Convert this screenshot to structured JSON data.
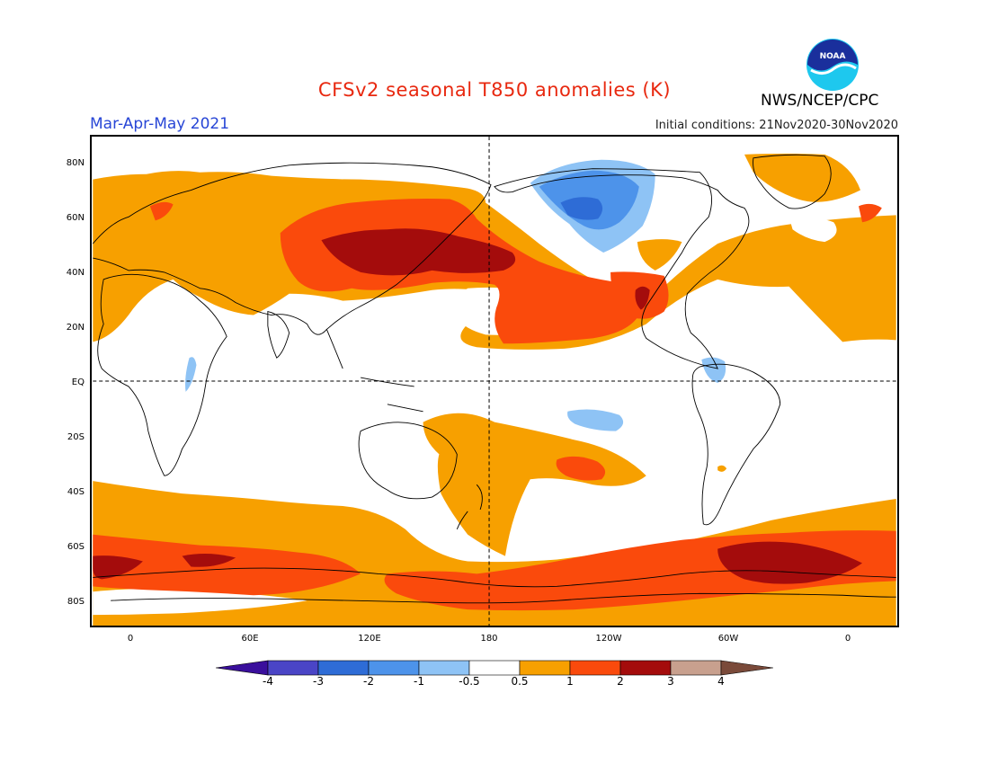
{
  "header": {
    "title": "CFSv2 seasonal T850 anomalies (K)",
    "season": "Mar-Apr-May 2021",
    "initial_conditions": "Initial conditions: 21Nov2020-30Nov2020",
    "agency": "NWS/NCEP/CPC",
    "logo_text": "NOAA"
  },
  "axes": {
    "lat_labels": [
      "80N",
      "60N",
      "40N",
      "20N",
      "EQ",
      "20S",
      "40S",
      "60S",
      "80S"
    ],
    "lon_labels": [
      "0",
      "60E",
      "120E",
      "180",
      "120W",
      "60W",
      "0"
    ]
  },
  "colorbar": {
    "labels": [
      "-4",
      "-3",
      "-2",
      "-1",
      "-0.5",
      "0.5",
      "1",
      "2",
      "3",
      "4"
    ],
    "colors": {
      "lt_-4": "#3a0f9c",
      "-4_-3": "#4a45c6",
      "-3_-2": "#2e6cd6",
      "-2_-1": "#4d93ea",
      "-1_-0.5": "#8ec3f5",
      "-0.5_0.5": "#ffffff",
      "0.5_1": "#f7a000",
      "1_2": "#fa4a0c",
      "2_3": "#a40c0c",
      "3_4": "#c8a08e",
      "gt_4": "#7a4a3a"
    }
  }
}
